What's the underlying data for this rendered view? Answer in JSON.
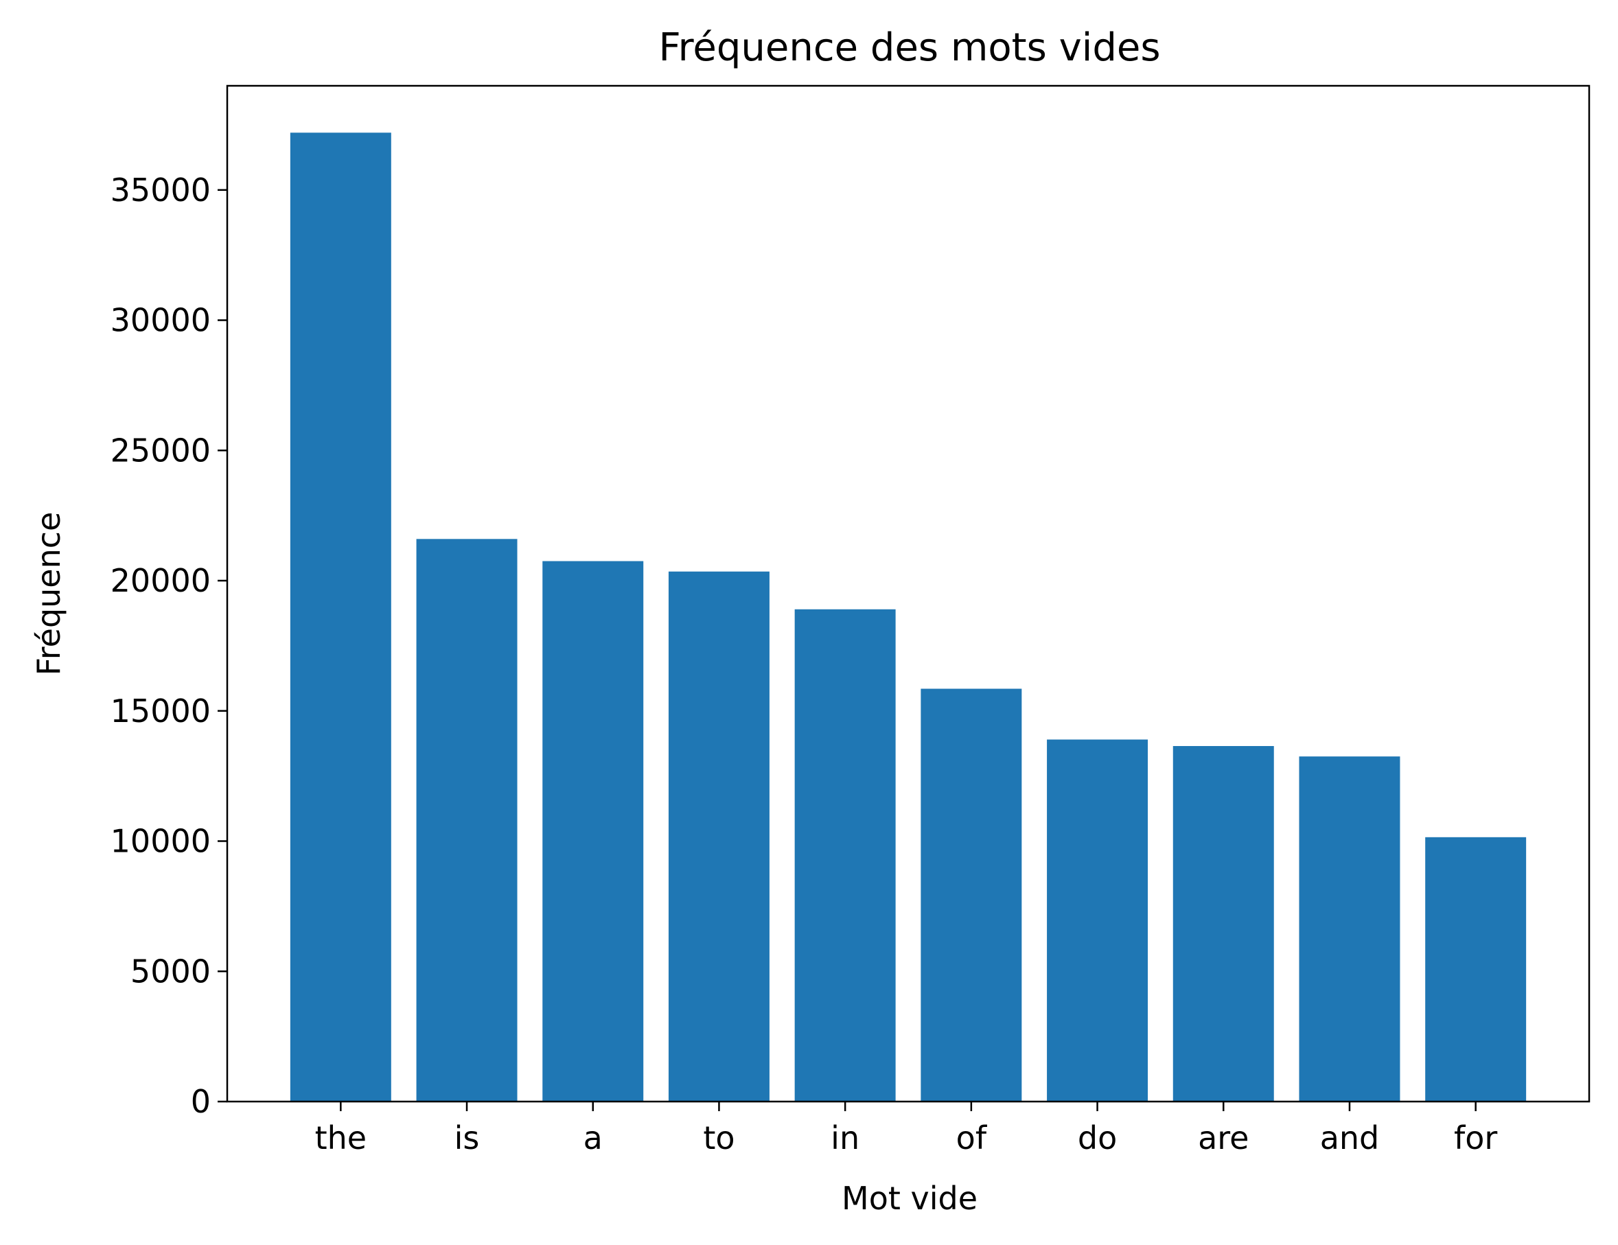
{
  "chart_data": {
    "type": "bar",
    "title": "Fréquence des mots vides",
    "xlabel": "Mot vide",
    "ylabel": "Fréquence",
    "categories": [
      "the",
      "is",
      "a",
      "to",
      "in",
      "of",
      "do",
      "are",
      "and",
      "for"
    ],
    "values": [
      37200,
      21600,
      20750,
      20350,
      18900,
      15850,
      13900,
      13650,
      13250,
      10150
    ],
    "ylim": [
      0,
      39000
    ],
    "yticks": [
      0,
      5000,
      10000,
      15000,
      20000,
      25000,
      30000,
      35000
    ],
    "ytick_labels": [
      "0",
      "5000",
      "10000",
      "15000",
      "20000",
      "25000",
      "30000",
      "35000"
    ],
    "grid": false,
    "colors": {
      "bar": "#1f77b4",
      "axis": "#000000",
      "background": "#ffffff"
    }
  }
}
